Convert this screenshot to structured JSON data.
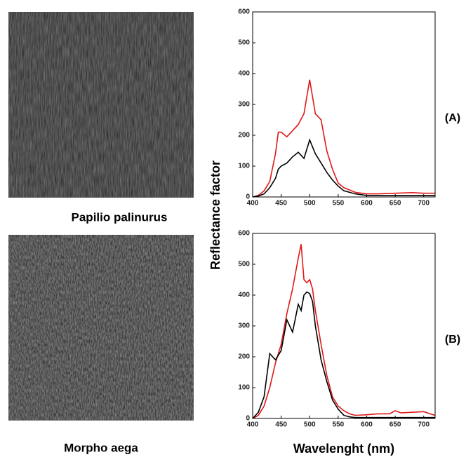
{
  "images": [
    {
      "caption": "Papilio palinurus"
    },
    {
      "caption": "Morpho aega"
    }
  ],
  "chart_data": [
    {
      "type": "line",
      "label": "(A)",
      "ylabel": "Reflectance factor",
      "x": [
        400,
        410,
        420,
        430,
        440,
        445,
        450,
        460,
        470,
        480,
        490,
        500,
        510,
        520,
        530,
        540,
        550,
        560,
        580,
        600,
        620,
        650,
        680,
        700,
        720
      ],
      "series": [
        {
          "color": "#e01818",
          "values": [
            0,
            5,
            20,
            50,
            140,
            210,
            210,
            195,
            215,
            235,
            270,
            380,
            270,
            250,
            150,
            90,
            45,
            30,
            15,
            10,
            10,
            12,
            14,
            12,
            12
          ]
        },
        {
          "color": "#000000",
          "values": [
            0,
            3,
            10,
            30,
            60,
            90,
            100,
            110,
            130,
            145,
            125,
            185,
            140,
            110,
            80,
            55,
            35,
            20,
            10,
            5,
            5,
            5,
            5,
            5,
            5
          ]
        }
      ],
      "xlim": [
        400,
        720
      ],
      "ylim": [
        0,
        600
      ],
      "xticks": [
        400,
        450,
        500,
        550,
        600,
        650,
        700
      ],
      "yticks": [
        0,
        100,
        200,
        300,
        400,
        500,
        600
      ]
    },
    {
      "type": "line",
      "label": "(B)",
      "xlabel": "Wavelenght (nm)",
      "x": [
        400,
        410,
        420,
        430,
        440,
        450,
        460,
        470,
        480,
        485,
        490,
        495,
        500,
        505,
        510,
        520,
        530,
        540,
        550,
        560,
        570,
        580,
        600,
        620,
        640,
        650,
        660,
        680,
        700,
        720
      ],
      "series": [
        {
          "color": "#e01818",
          "values": [
            0,
            10,
            40,
            100,
            180,
            240,
            340,
            420,
            520,
            565,
            450,
            440,
            450,
            420,
            350,
            240,
            140,
            70,
            40,
            25,
            15,
            10,
            12,
            15,
            15,
            25,
            18,
            20,
            22,
            10
          ]
        },
        {
          "color": "#000000",
          "values": [
            0,
            20,
            70,
            210,
            190,
            220,
            320,
            280,
            370,
            350,
            400,
            410,
            405,
            380,
            300,
            190,
            120,
            60,
            30,
            10,
            5,
            3,
            3,
            3,
            3,
            3,
            3,
            3,
            3,
            3
          ]
        }
      ],
      "xlim": [
        400,
        720
      ],
      "ylim": [
        0,
        600
      ],
      "xticks": [
        400,
        450,
        500,
        550,
        600,
        650,
        700
      ],
      "yticks": [
        0,
        100,
        200,
        300,
        400,
        500,
        600
      ]
    }
  ]
}
